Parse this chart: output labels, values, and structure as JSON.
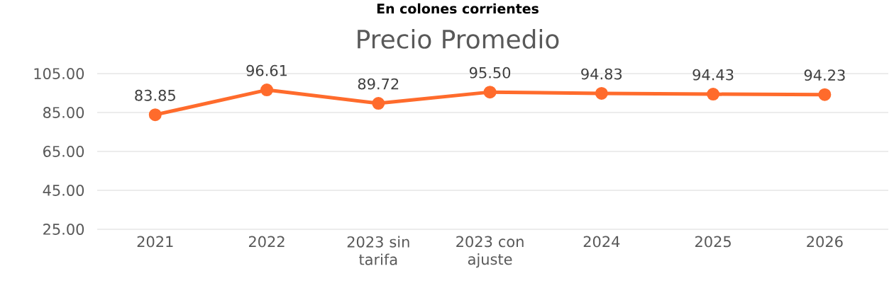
{
  "chart_data": {
    "type": "line",
    "title": "Precio Promedio",
    "subtitle": "**En colones corrientes**",
    "categories": [
      "2021",
      "2022",
      "2023 sin tarifa",
      "2023 con ajuste",
      "2024",
      "2025",
      "2026"
    ],
    "values": [
      83.85,
      96.61,
      89.72,
      95.5,
      94.83,
      94.43,
      94.23
    ],
    "value_labels": [
      "83.85",
      "96.61",
      "89.72",
      "95.50",
      "94.83",
      "94.43",
      "94.23"
    ],
    "color": "#ff6b2c",
    "marker": "circle",
    "line_style": "solid",
    "ylim": [
      25,
      105
    ],
    "yticks": [
      {
        "value": 25,
        "label": "25.00"
      },
      {
        "value": 45,
        "label": "45.00"
      },
      {
        "value": 65,
        "label": "65.00"
      },
      {
        "value": 85,
        "label": "85.00"
      },
      {
        "value": 105,
        "label": "105.00"
      }
    ],
    "grid": "y"
  }
}
